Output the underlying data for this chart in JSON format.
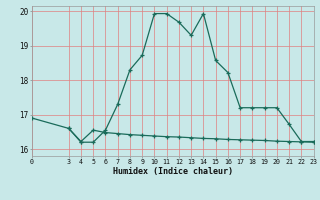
{
  "xlabel": "Humidex (Indice chaleur)",
  "bg_color": "#c8e8e8",
  "line_color": "#1a6b5a",
  "vgrid_color": "#e08080",
  "hgrid_color": "#e08080",
  "xlim": [
    0,
    23
  ],
  "ylim": [
    15.8,
    20.15
  ],
  "xticks": [
    0,
    3,
    4,
    5,
    6,
    7,
    8,
    9,
    10,
    11,
    12,
    13,
    14,
    15,
    16,
    17,
    18,
    19,
    20,
    21,
    22,
    23
  ],
  "yticks": [
    16,
    17,
    18,
    19,
    20
  ],
  "series1_x": [
    0,
    3,
    4,
    5,
    6,
    7,
    8,
    9,
    10,
    11,
    12,
    13,
    14,
    15,
    16,
    17,
    18,
    19,
    20,
    21,
    22,
    23
  ],
  "series1_y": [
    16.9,
    16.6,
    16.2,
    16.2,
    16.55,
    17.3,
    18.3,
    18.72,
    19.93,
    19.93,
    19.68,
    19.3,
    19.93,
    18.57,
    18.22,
    17.2,
    17.2,
    17.2,
    17.2,
    16.72,
    16.22,
    16.22
  ],
  "series2_x": [
    3,
    4,
    5,
    6,
    7,
    8,
    9,
    10,
    11,
    12,
    13,
    14,
    15,
    16,
    17,
    18,
    19,
    20,
    21,
    22,
    23
  ],
  "series2_y": [
    16.6,
    16.22,
    16.55,
    16.48,
    16.45,
    16.42,
    16.4,
    16.38,
    16.36,
    16.35,
    16.33,
    16.31,
    16.3,
    16.28,
    16.27,
    16.26,
    16.25,
    16.23,
    16.22,
    16.21,
    16.2
  ]
}
